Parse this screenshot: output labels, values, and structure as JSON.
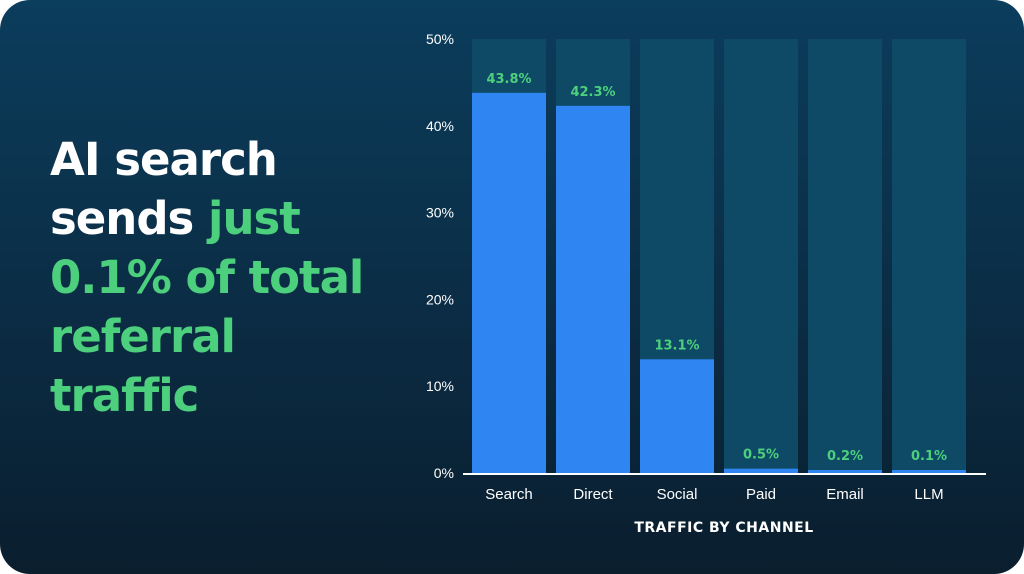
{
  "headline": {
    "line1": "AI search",
    "line2_white": "sends",
    "line2_green": "just",
    "line3": "0.1% of total",
    "line4": "referral",
    "line5": "traffic"
  },
  "colors": {
    "bar": "#2f86f2",
    "track": "#0e4a66",
    "accent_green": "#4cd07d",
    "axis": "#ffffff"
  },
  "chart_data": {
    "type": "bar",
    "categories": [
      "Search",
      "Direct",
      "Social",
      "Paid",
      "Email",
      "LLM"
    ],
    "values": [
      43.8,
      42.3,
      13.1,
      0.5,
      0.2,
      0.1
    ],
    "data_labels": [
      "43.8%",
      "42.3%",
      "13.1%",
      "0.5%",
      "0.2%",
      "0.1%"
    ],
    "xlabel": "TRAFFIC BY CHANNEL",
    "ylabel": "",
    "ylim": [
      0,
      50
    ],
    "yticks": [
      0,
      10,
      20,
      30,
      40,
      50
    ],
    "ytick_labels": [
      "0%",
      "10%",
      "20%",
      "30%",
      "40%",
      "50%"
    ],
    "grid": false,
    "legend": "none"
  }
}
